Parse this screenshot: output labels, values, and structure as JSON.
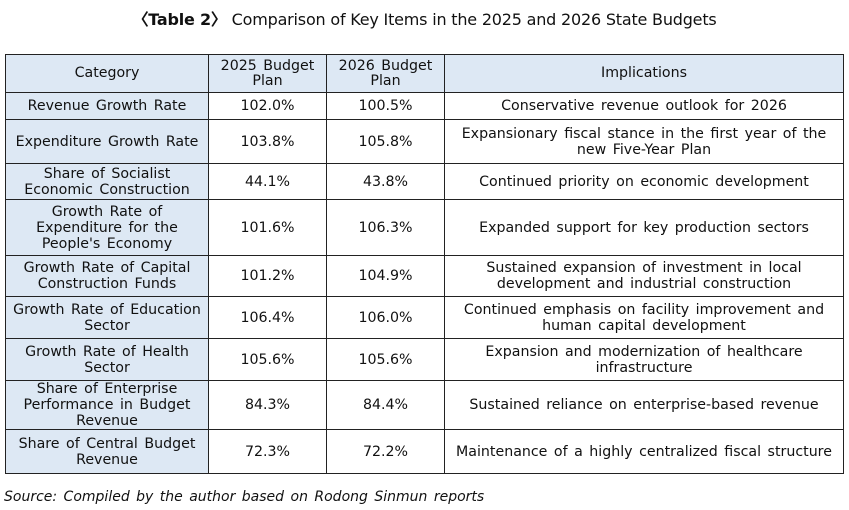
{
  "title": {
    "label": "〈Table 2〉",
    "text": "Comparison of Key Items in the 2025 and 2026 State Budgets"
  },
  "table": {
    "headers": {
      "category": "Category",
      "plan2025": "2025 Budget Plan",
      "plan2026": "2026 Budget Plan",
      "implications": "Implications"
    },
    "rows": [
      {
        "category": "Revenue Growth Rate",
        "plan2025": "102.0%",
        "plan2026": "100.5%",
        "implications": "Conservative revenue outlook for 2026"
      },
      {
        "category": "Expenditure Growth Rate",
        "plan2025": "103.8%",
        "plan2026": "105.8%",
        "implications": "Expansionary fiscal stance in the first year of the new Five-Year Plan"
      },
      {
        "category": "Share of Socialist Economic Construction",
        "plan2025": "44.1%",
        "plan2026": "43.8%",
        "implications": "Continued priority on economic development"
      },
      {
        "category": "Growth Rate of Expenditure for the People's Economy",
        "plan2025": "101.6%",
        "plan2026": "106.3%",
        "implications": "Expanded support for key production sectors"
      },
      {
        "category": "Growth Rate of Capital Construction Funds",
        "plan2025": "101.2%",
        "plan2026": "104.9%",
        "implications": "Sustained expansion of investment in local development and industrial construction"
      },
      {
        "category": "Growth Rate of Education Sector",
        "plan2025": "106.4%",
        "plan2026": "106.0%",
        "implications": "Continued emphasis on facility improvement and human capital development"
      },
      {
        "category": "Growth Rate of Health Sector",
        "plan2025": "105.6%",
        "plan2026": "105.6%",
        "implications": "Expansion and modernization of healthcare infrastructure"
      },
      {
        "category": "Share of Enterprise Performance in Budget Revenue",
        "plan2025": "84.3%",
        "plan2026": "84.4%",
        "implications": "Sustained reliance on enterprise-based revenue"
      },
      {
        "category": "Share of Central Budget Revenue",
        "plan2025": "72.3%",
        "plan2026": "72.2%",
        "implications": "Maintenance of a highly centralized fiscal structure"
      }
    ]
  },
  "source": "Source: Compiled by the author based on Rodong Sinmun reports",
  "colors": {
    "header_bg": "#dde8f4",
    "border": "#222222"
  }
}
